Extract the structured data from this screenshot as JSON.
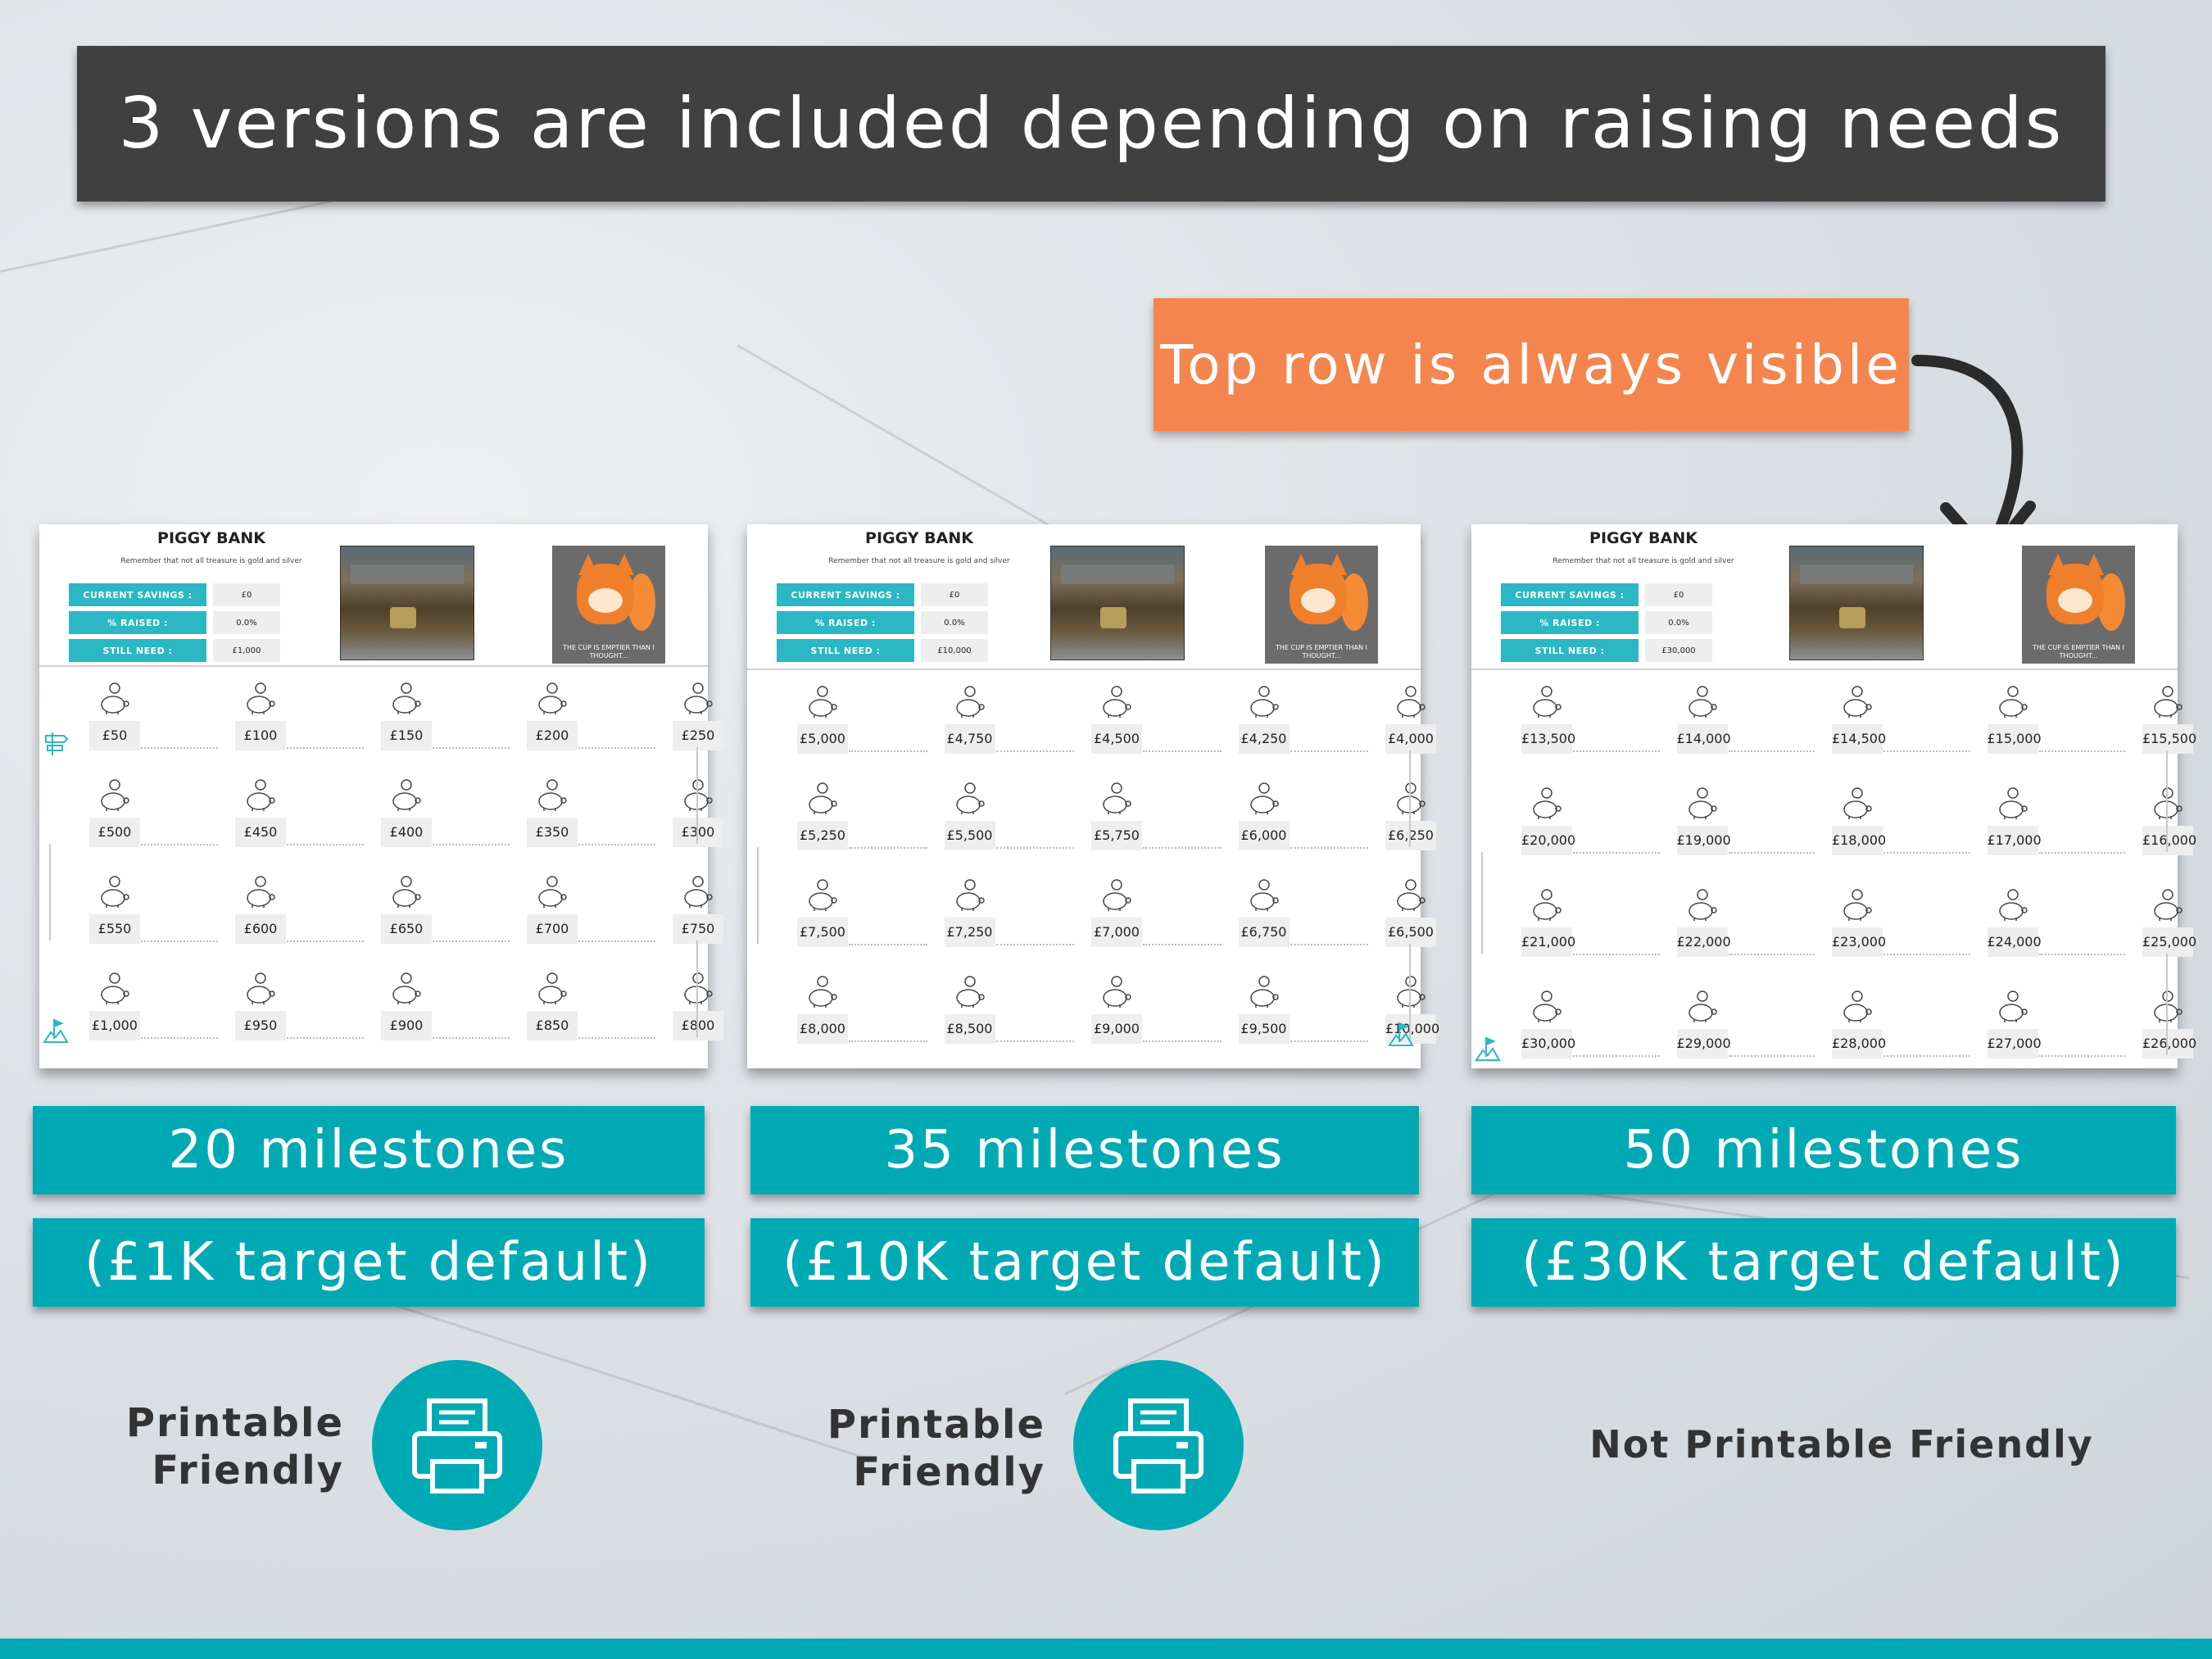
{
  "header": {
    "title": "3 versions are included depending on raising needs"
  },
  "callout": {
    "text": "Top row is always visible"
  },
  "sheets": [
    {
      "title": "PIGGY BANK",
      "quote": "Remember that not all treasure is gold and silver",
      "stats": {
        "current_label": "CURRENT SAVINGS :",
        "current_value": "£0",
        "raised_label": "% RAISED :",
        "raised_value": "0.0%",
        "need_label": "STILL NEED :",
        "need_value": "£1,000"
      },
      "mascot_text": "THE CUP IS EMPTIER THAN I THOUGHT...",
      "rows": [
        [
          "£50",
          "£100",
          "£150",
          "£200",
          "£250"
        ],
        [
          "£500",
          "£450",
          "£400",
          "£350",
          "£300"
        ],
        [
          "£550",
          "£600",
          "£650",
          "£700",
          "£750"
        ],
        [
          "£1,000",
          "£950",
          "£900",
          "£850",
          "£800"
        ]
      ]
    },
    {
      "title": "PIGGY BANK",
      "quote": "Remember that not all treasure is gold and silver",
      "stats": {
        "current_label": "CURRENT SAVINGS :",
        "current_value": "£0",
        "raised_label": "% RAISED :",
        "raised_value": "0.0%",
        "need_label": "STILL NEED :",
        "need_value": "£10,000"
      },
      "mascot_text": "THE CUP IS EMPTIER THAN I THOUGHT...",
      "rows": [
        [
          "£5,000",
          "£4,750",
          "£4,500",
          "£4,250",
          "£4,000"
        ],
        [
          "£5,250",
          "£5,500",
          "£5,750",
          "£6,000",
          "£6,250"
        ],
        [
          "£7,500",
          "£7,250",
          "£7,000",
          "£6,750",
          "£6,500"
        ],
        [
          "£8,000",
          "£8,500",
          "£9,000",
          "£9,500",
          "£10,000"
        ]
      ]
    },
    {
      "title": "PIGGY BANK",
      "quote": "Remember that not all treasure is gold and silver",
      "stats": {
        "current_label": "CURRENT SAVINGS :",
        "current_value": "£0",
        "raised_label": "% RAISED :",
        "raised_value": "0.0%",
        "need_label": "STILL NEED :",
        "need_value": "£30,000"
      },
      "mascot_text": "THE CUP IS EMPTIER THAN I THOUGHT...",
      "rows": [
        [
          "£13,500",
          "£14,000",
          "£14,500",
          "£15,000",
          "£15,500"
        ],
        [
          "£20,000",
          "£19,000",
          "£18,000",
          "£17,000",
          "£16,000"
        ],
        [
          "£21,000",
          "£22,000",
          "£23,000",
          "£24,000",
          "£25,000"
        ],
        [
          "£30,000",
          "£29,000",
          "£28,000",
          "£27,000",
          "£26,000"
        ]
      ]
    }
  ],
  "banners": [
    {
      "milestones": "20 milestones",
      "target": "(£1K target default)"
    },
    {
      "milestones": "35 milestones",
      "target": "(£10K target default)"
    },
    {
      "milestones": "50 milestones",
      "target": "(£30K target default)"
    }
  ],
  "printable": {
    "line1": "Printable",
    "line2": "Friendly",
    "icon": "printer-icon"
  },
  "not_printable": "Not Printable Friendly",
  "colors": {
    "teal": "#00aab5",
    "orange": "#f5854f",
    "dark": "#404040"
  }
}
